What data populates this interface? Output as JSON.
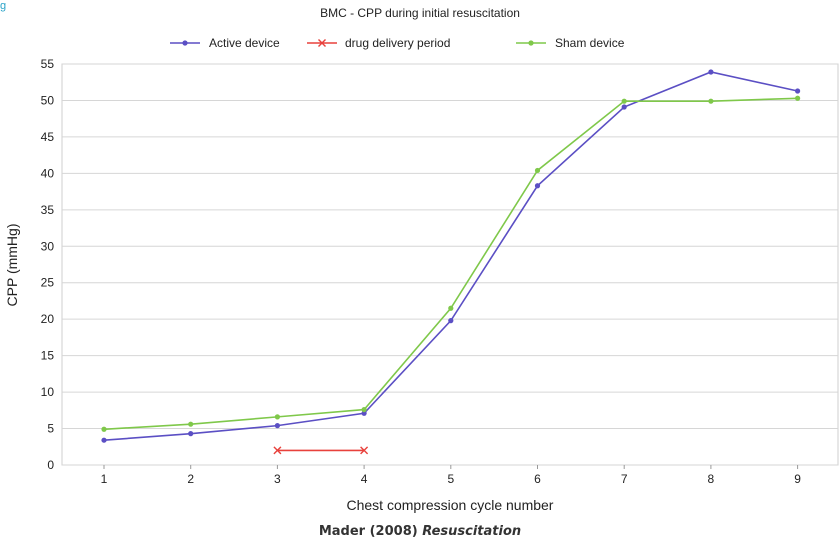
{
  "corner_mark": "g",
  "caption": {
    "author_year": "Mader (2008)",
    "journal": "Resuscitation"
  },
  "chart_data": {
    "type": "line",
    "title": "BMC - CPP during initial resuscitation",
    "xlabel": "Chest compression cycle number",
    "ylabel": "CPP (mmHg)",
    "categories": [
      "1",
      "2",
      "3",
      "4",
      "5",
      "6",
      "7",
      "8",
      "9"
    ],
    "ylim": [
      0,
      55
    ],
    "yticks": [
      0,
      5,
      10,
      15,
      20,
      25,
      30,
      35,
      40,
      45,
      50,
      55
    ],
    "grid": "horizontal",
    "legend_position": "top",
    "series": [
      {
        "name": "Active device",
        "color": "#5b4fc4",
        "marker": "circle",
        "x": [
          1,
          2,
          3,
          4,
          5,
          6,
          7,
          8,
          9
        ],
        "values": [
          3.4,
          4.3,
          5.4,
          7.1,
          19.8,
          38.3,
          49.1,
          53.9,
          51.3
        ]
      },
      {
        "name": "drug delivery period",
        "color": "#e8413c",
        "marker": "x",
        "x": [
          3,
          4
        ],
        "values": [
          2.0,
          2.0
        ]
      },
      {
        "name": "Sham device",
        "color": "#7fc84a",
        "marker": "circle",
        "x": [
          1,
          2,
          3,
          4,
          5,
          6,
          7,
          8,
          9
        ],
        "values": [
          4.9,
          5.6,
          6.6,
          7.6,
          21.5,
          40.4,
          49.9,
          49.9,
          50.3
        ]
      }
    ]
  }
}
